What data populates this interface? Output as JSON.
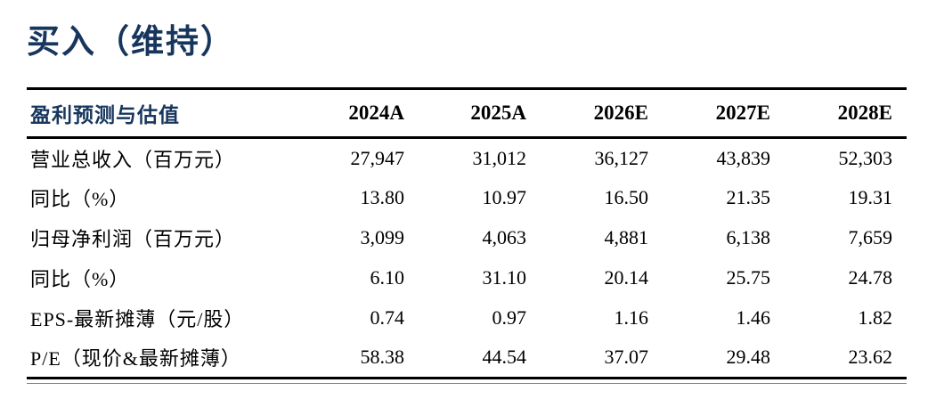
{
  "page": {
    "title": "买入（维持）"
  },
  "colors": {
    "accent_navy": "#17365D",
    "text": "#000000",
    "rule": "#000000",
    "thin_rule": "#7f7f7f",
    "background": "#ffffff"
  },
  "table": {
    "header": {
      "label": "盈利预测与估值",
      "years": [
        "2024A",
        "2025A",
        "2026E",
        "2027E",
        "2028E"
      ]
    },
    "rows": [
      {
        "label": "营业总收入（百万元）",
        "values": [
          "27,947",
          "31,012",
          "36,127",
          "43,839",
          "52,303"
        ]
      },
      {
        "label": "同比（%）",
        "values": [
          "13.80",
          "10.97",
          "16.50",
          "21.35",
          "19.31"
        ]
      },
      {
        "label": "归母净利润（百万元）",
        "values": [
          "3,099",
          "4,063",
          "4,881",
          "6,138",
          "7,659"
        ]
      },
      {
        "label": "同比（%）",
        "values": [
          "6.10",
          "31.10",
          "20.14",
          "25.75",
          "24.78"
        ]
      },
      {
        "label": "EPS-最新摊薄（元/股）",
        "values": [
          "0.74",
          "0.97",
          "1.16",
          "1.46",
          "1.82"
        ]
      },
      {
        "label": "P/E（现价&最新摊薄）",
        "values": [
          "58.38",
          "44.54",
          "37.07",
          "29.48",
          "23.62"
        ]
      }
    ]
  }
}
